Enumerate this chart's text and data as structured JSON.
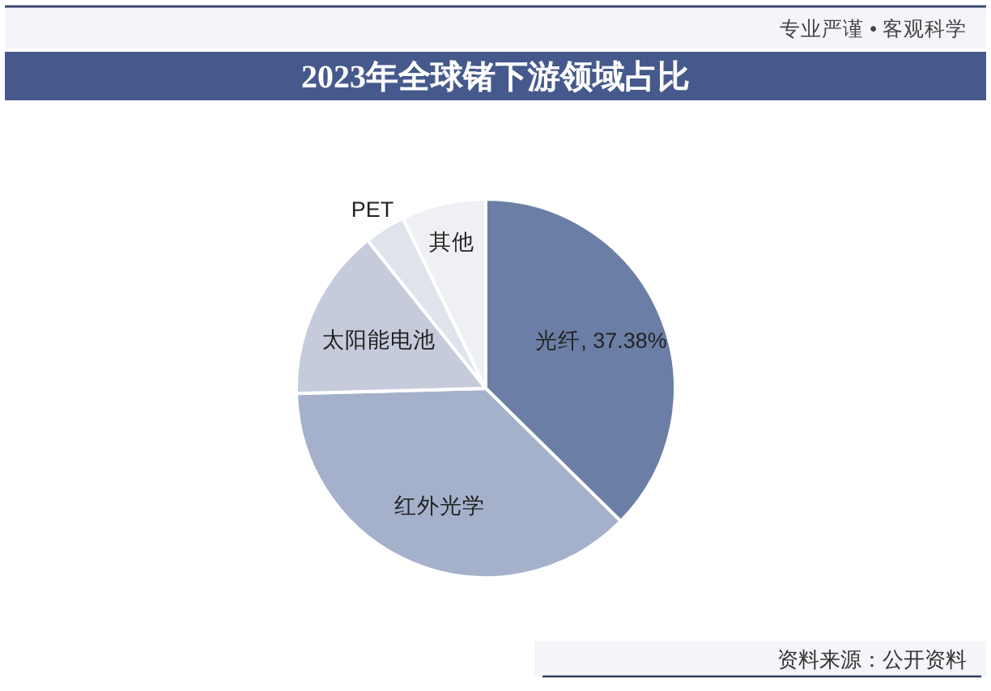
{
  "chart_data": {
    "type": "pie",
    "title": "2023年全球锗下游领域占比",
    "categories": [
      "光纤",
      "红外光学",
      "太阳能电池",
      "PET",
      "其他"
    ],
    "values": [
      37.38,
      37.2,
      14.7,
      3.5,
      7.22
    ],
    "value_labels": [
      "37.38%",
      null,
      null,
      null,
      null
    ],
    "colors": [
      "#6b7fa6",
      "#a5b1cb",
      "#c5cbdb",
      "#dfe3ec",
      "#eff0f3"
    ],
    "annotations": [
      "专业严谨 • 客观科学",
      "资料来源：公开资料"
    ]
  }
}
